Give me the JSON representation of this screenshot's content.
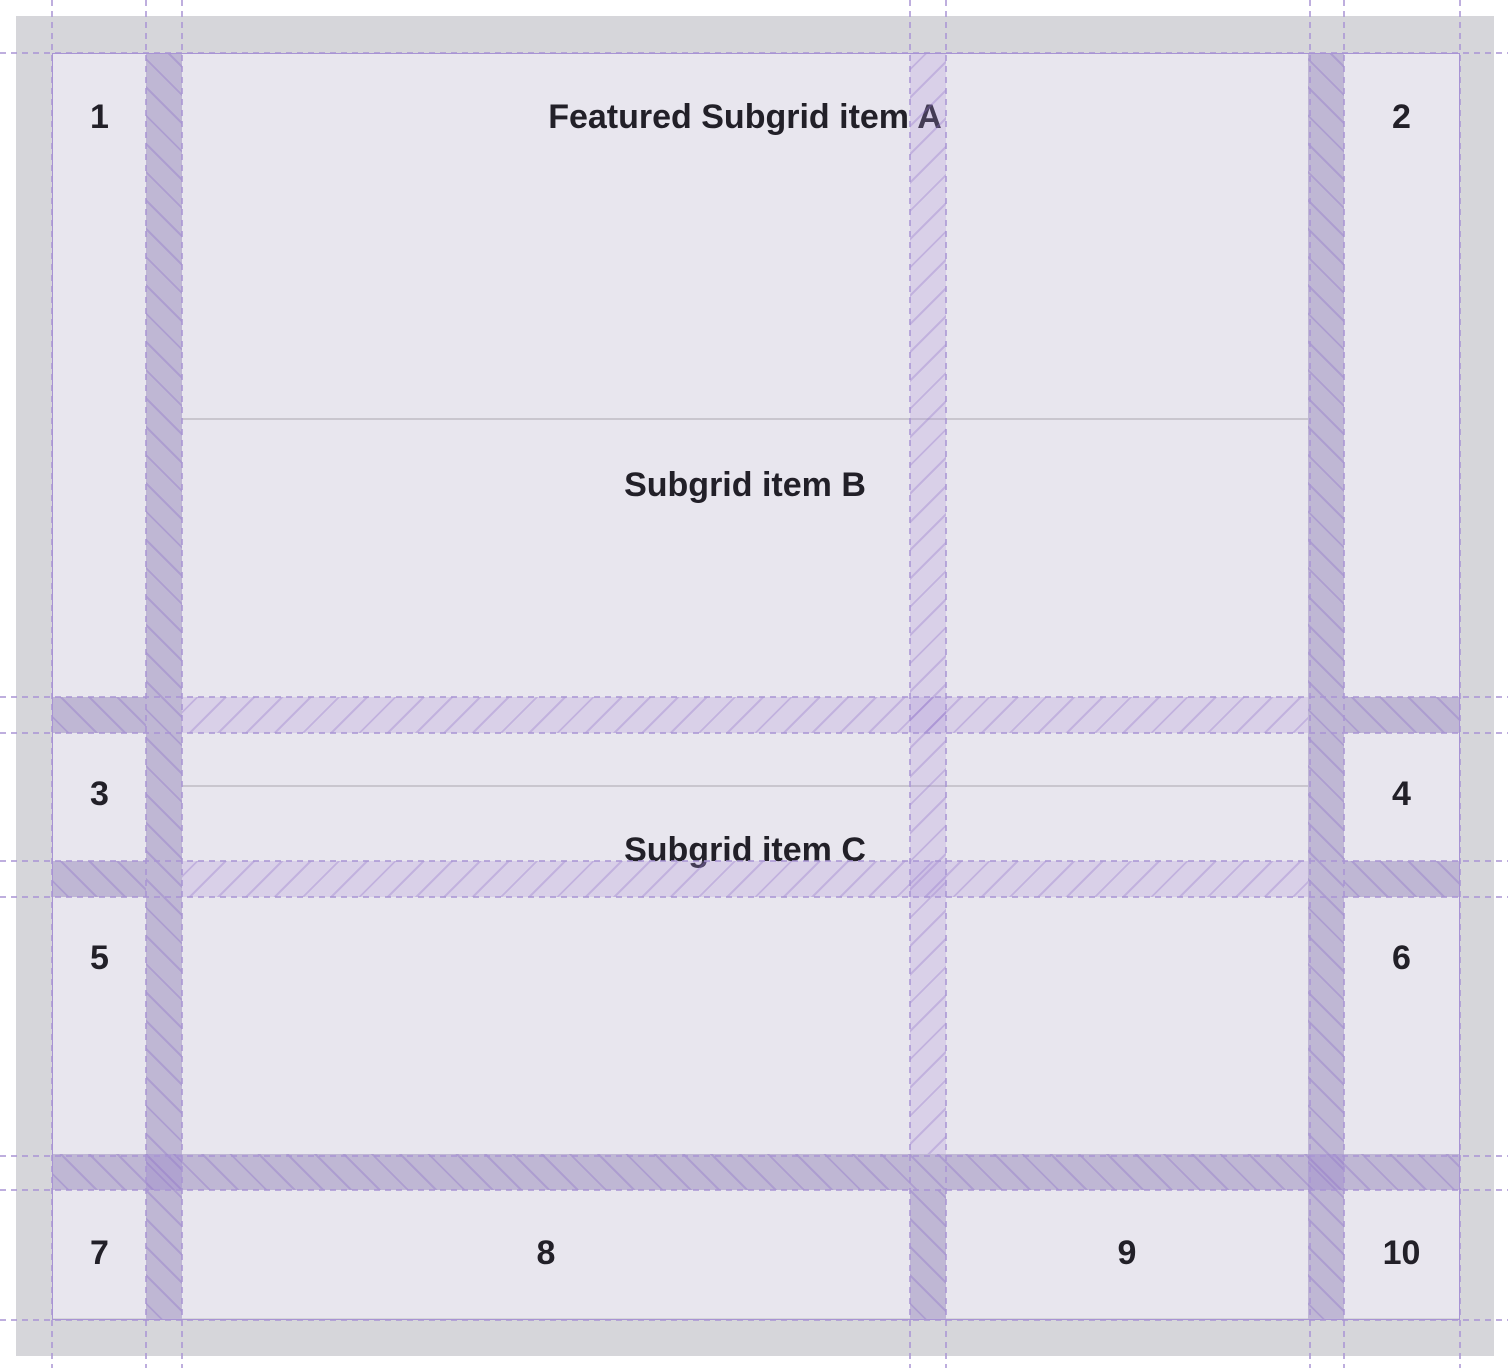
{
  "grid_items": [
    "1",
    "2",
    "3",
    "4",
    "5",
    "6",
    "7",
    "8",
    "9",
    "10"
  ],
  "subgrid_items": {
    "a": "Featured Subgrid item A",
    "b": "Subgrid item B",
    "c": "Subgrid item C"
  },
  "colors": {
    "background": "#d6d6da",
    "cell": "#e8e6ee",
    "grid_line": "#a894d4",
    "text": "#222028"
  }
}
